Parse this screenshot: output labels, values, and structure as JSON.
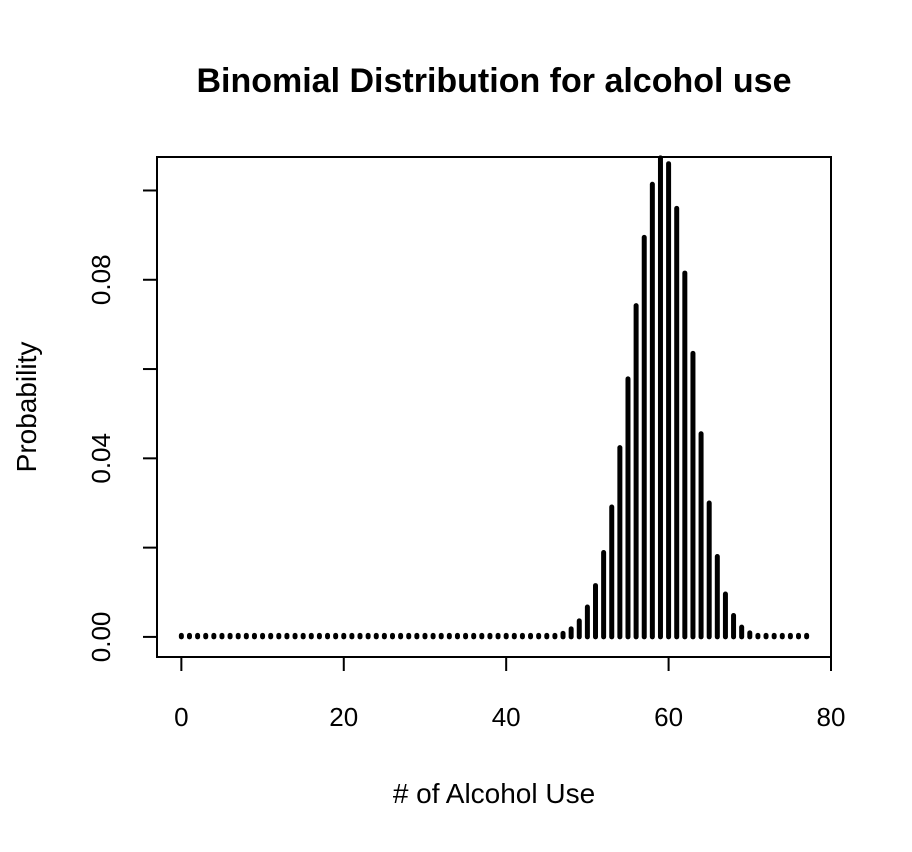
{
  "chart_data": {
    "type": "bar",
    "title": "Binomial Distribution for alcohol use",
    "xlabel": "# of Alcohol Use",
    "ylabel": "Probability",
    "xlim": [
      -3,
      80
    ],
    "ylim": [
      -0.0045,
      0.1075
    ],
    "x_ticks": [
      0,
      20,
      40,
      60,
      80
    ],
    "x_tick_labels": [
      "0",
      "20",
      "40",
      "60",
      "80"
    ],
    "y_ticks": [
      0.0,
      0.02,
      0.04,
      0.06,
      0.08,
      0.1
    ],
    "y_tick_labels": [
      "0.00",
      "",
      "0.04",
      "",
      "0.08",
      ""
    ],
    "grid": false,
    "legend": "none",
    "bar_color": "#000000",
    "x": [
      0,
      1,
      2,
      3,
      4,
      5,
      6,
      7,
      8,
      9,
      10,
      11,
      12,
      13,
      14,
      15,
      16,
      17,
      18,
      19,
      20,
      21,
      22,
      23,
      24,
      25,
      26,
      27,
      28,
      29,
      30,
      31,
      32,
      33,
      34,
      35,
      36,
      37,
      38,
      39,
      40,
      41,
      42,
      43,
      44,
      45,
      46,
      47,
      48,
      49,
      50,
      51,
      52,
      53,
      54,
      55,
      56,
      57,
      58,
      59,
      60,
      61,
      62,
      63,
      64,
      65,
      66,
      67,
      68,
      69,
      70,
      71,
      72,
      73,
      74,
      75,
      76,
      77
    ],
    "values": [
      0,
      0,
      0,
      0,
      0,
      0,
      0,
      0,
      0,
      0,
      0,
      0,
      0,
      0,
      0,
      0,
      0,
      0,
      0,
      0,
      0,
      0,
      0,
      0,
      0,
      0,
      0,
      0,
      0,
      0,
      0,
      0,
      0,
      0,
      0,
      0,
      0,
      0,
      0,
      0,
      0,
      0,
      0,
      0,
      0,
      0.0001,
      0.0003,
      0.0008,
      0.0018,
      0.0036,
      0.0067,
      0.0115,
      0.0189,
      0.0291,
      0.0424,
      0.0578,
      0.0742,
      0.0895,
      0.1014,
      0.1073,
      0.106,
      0.096,
      0.0815,
      0.0635,
      0.0455,
      0.03,
      0.018,
      0.0096,
      0.0048,
      0.0022,
      0.0009,
      0.0003,
      0.0001,
      0,
      0,
      0,
      0,
      0
    ]
  }
}
